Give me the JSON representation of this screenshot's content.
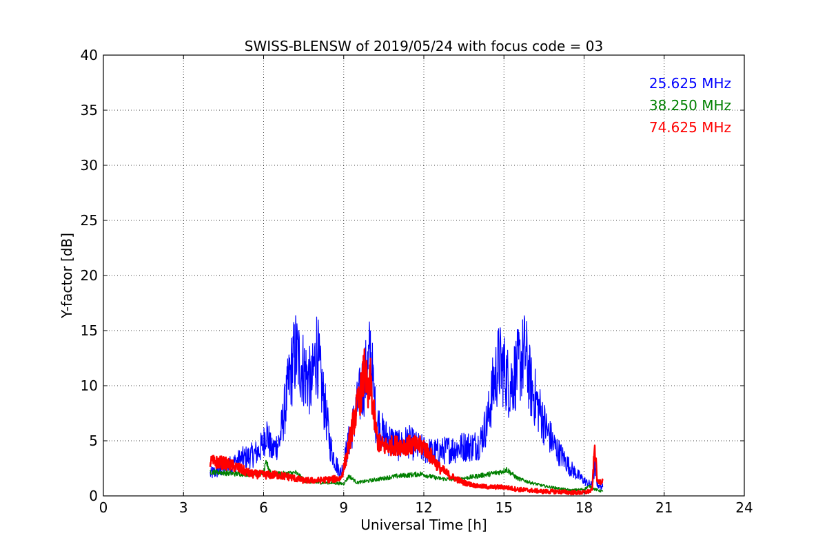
{
  "chart_data": {
    "type": "line",
    "title": "SWISS-BLENSW of 2019/05/24 with focus code = 03",
    "xlabel": "Universal Time [h]",
    "ylabel": "Y-factor [dB]",
    "xlim": [
      0,
      24
    ],
    "ylim": [
      0,
      40
    ],
    "xticks": [
      0,
      3,
      6,
      9,
      12,
      15,
      18,
      21,
      24
    ],
    "yticks": [
      0,
      5,
      10,
      15,
      20,
      25,
      30,
      35,
      40
    ],
    "grid": true,
    "legend_position": "top-right",
    "series": [
      {
        "name": "25.625 MHz",
        "color": "#0000ff",
        "x": [
          4.0,
          4.3,
          4.6,
          4.9,
          5.2,
          5.5,
          5.8,
          6.0,
          6.1,
          6.3,
          6.6,
          6.8,
          7.0,
          7.2,
          7.4,
          7.6,
          7.8,
          8.0,
          8.1,
          8.3,
          8.5,
          8.7,
          8.9,
          9.1,
          9.3,
          9.5,
          9.7,
          9.9,
          10.0,
          10.2,
          10.5,
          10.8,
          11.1,
          11.4,
          11.7,
          12.0,
          12.3,
          12.6,
          12.9,
          13.2,
          13.5,
          13.8,
          14.1,
          14.4,
          14.6,
          14.8,
          15.0,
          15.2,
          15.4,
          15.6,
          15.8,
          16.0,
          16.3,
          16.6,
          16.9,
          17.2,
          17.5,
          17.8,
          18.1,
          18.3,
          18.4,
          18.5,
          18.7
        ],
        "y": [
          2.0,
          2.3,
          2.6,
          3.0,
          3.4,
          3.6,
          4.0,
          4.8,
          6.0,
          4.0,
          5.0,
          8.0,
          11.0,
          13.0,
          12.0,
          11.0,
          10.0,
          13.5,
          11.0,
          8.0,
          4.5,
          3.0,
          2.0,
          4.0,
          6.0,
          8.0,
          10.0,
          11.5,
          13.0,
          7.0,
          5.5,
          5.0,
          4.5,
          5.0,
          4.5,
          4.2,
          4.0,
          4.0,
          4.2,
          4.3,
          4.5,
          4.5,
          4.8,
          7.0,
          10.0,
          12.0,
          11.5,
          10.0,
          11.0,
          12.0,
          13.0,
          10.0,
          8.0,
          6.0,
          4.5,
          3.5,
          2.5,
          1.8,
          1.2,
          1.0,
          2.5,
          1.0,
          0.8
        ]
      },
      {
        "name": "38.250 MHz",
        "color": "#008000",
        "x": [
          4.0,
          4.5,
          5.0,
          5.5,
          6.0,
          6.1,
          6.3,
          6.8,
          7.2,
          7.6,
          8.0,
          8.5,
          9.0,
          9.2,
          9.5,
          10.0,
          10.5,
          11.0,
          11.5,
          11.9,
          12.2,
          12.5,
          13.0,
          13.5,
          14.0,
          14.5,
          14.9,
          15.1,
          15.5,
          16.0,
          16.5,
          17.0,
          17.5,
          18.0,
          18.2,
          18.4,
          18.7
        ],
        "y": [
          2.2,
          2.1,
          2.0,
          2.0,
          2.1,
          3.0,
          2.0,
          2.0,
          2.1,
          1.3,
          1.2,
          1.2,
          1.1,
          1.8,
          1.2,
          1.4,
          1.6,
          1.8,
          1.9,
          2.0,
          1.8,
          1.6,
          1.5,
          1.6,
          1.8,
          2.0,
          2.2,
          2.4,
          1.6,
          1.2,
          0.9,
          0.7,
          0.5,
          0.6,
          0.9,
          0.6,
          0.4
        ]
      },
      {
        "name": "74.625 MHz",
        "color": "#ff0000",
        "x": [
          4.0,
          4.5,
          5.0,
          5.5,
          6.0,
          6.5,
          7.0,
          7.5,
          8.0,
          8.5,
          8.9,
          9.1,
          9.3,
          9.5,
          9.7,
          9.8,
          9.9,
          10.0,
          10.1,
          10.2,
          10.3,
          10.5,
          11.0,
          11.5,
          12.0,
          12.3,
          12.6,
          13.0,
          13.5,
          14.0,
          14.5,
          15.0,
          15.5,
          16.0,
          16.5,
          17.0,
          17.5,
          18.0,
          18.3,
          18.4,
          18.5,
          18.7
        ],
        "y": [
          3.1,
          3.0,
          2.6,
          2.0,
          1.9,
          1.9,
          1.7,
          1.4,
          1.4,
          1.5,
          1.6,
          3.5,
          6.0,
          8.0,
          10.0,
          12.0,
          8.5,
          10.5,
          8.0,
          6.0,
          4.8,
          4.5,
          4.6,
          4.6,
          4.5,
          3.5,
          2.5,
          1.8,
          1.2,
          0.9,
          0.8,
          0.8,
          0.6,
          0.5,
          0.4,
          0.4,
          0.3,
          0.3,
          0.5,
          4.5,
          1.2,
          1.4
        ]
      }
    ]
  }
}
